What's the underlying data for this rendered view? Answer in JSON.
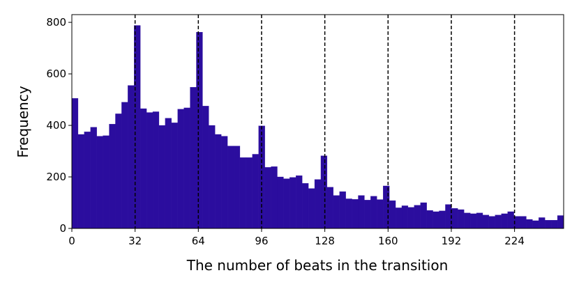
{
  "chart_data": {
    "type": "histogram",
    "xlabel": "The number of beats in the transition",
    "ylabel": "Frequency",
    "color": "#2b0d9e",
    "bins": [
      0,
      3.15,
      6.3,
      9.45,
      12.6,
      15.75,
      18.9,
      22.05,
      25.2,
      28.35,
      31.5,
      34.65,
      37.8,
      40.95,
      44.1,
      47.25,
      50.4,
      53.55,
      56.7,
      59.85,
      63,
      66.15,
      69.3,
      72.45,
      75.6,
      78.75,
      81.9,
      85.05,
      88.2,
      91.35,
      94.5,
      97.65,
      100.8,
      103.95,
      107.1,
      110.25,
      113.4,
      116.55,
      119.7,
      122.85,
      126,
      129.15,
      132.3,
      135.45,
      138.6,
      141.75,
      144.9,
      148.05,
      151.2,
      154.35,
      157.5,
      160.65,
      163.8,
      166.95,
      170.1,
      173.25,
      176.4,
      179.55,
      182.7,
      185.85,
      189,
      192.15,
      195.3,
      198.45,
      201.6,
      204.75,
      207.9,
      211.05,
      214.2,
      217.35,
      220.5,
      223.65,
      226.8,
      229.95,
      233.1,
      236.25,
      239.4,
      242.55,
      245.7,
      248.85
    ],
    "values": [
      505,
      365,
      375,
      393,
      358,
      360,
      405,
      445,
      490,
      555,
      788,
      465,
      450,
      453,
      400,
      428,
      410,
      463,
      468,
      548,
      762,
      475,
      400,
      365,
      358,
      320,
      320,
      275,
      275,
      288,
      398,
      237,
      240,
      200,
      193,
      198,
      205,
      175,
      155,
      190,
      282,
      160,
      128,
      143,
      115,
      113,
      128,
      110,
      125,
      112,
      165,
      108,
      80,
      88,
      82,
      90,
      100,
      70,
      65,
      68,
      93,
      78,
      73,
      60,
      57,
      60,
      52,
      47,
      52,
      57,
      65,
      47,
      47,
      35,
      30,
      42,
      32,
      32,
      50
    ],
    "xlim": [
      0,
      248.85
    ],
    "ylim": [
      0,
      830
    ],
    "xticks": [
      0,
      32,
      64,
      96,
      128,
      160,
      192,
      224
    ],
    "yticks": [
      0,
      200,
      400,
      600,
      800
    ],
    "vlines": [
      32,
      64,
      96,
      128,
      160,
      192,
      224
    ]
  }
}
